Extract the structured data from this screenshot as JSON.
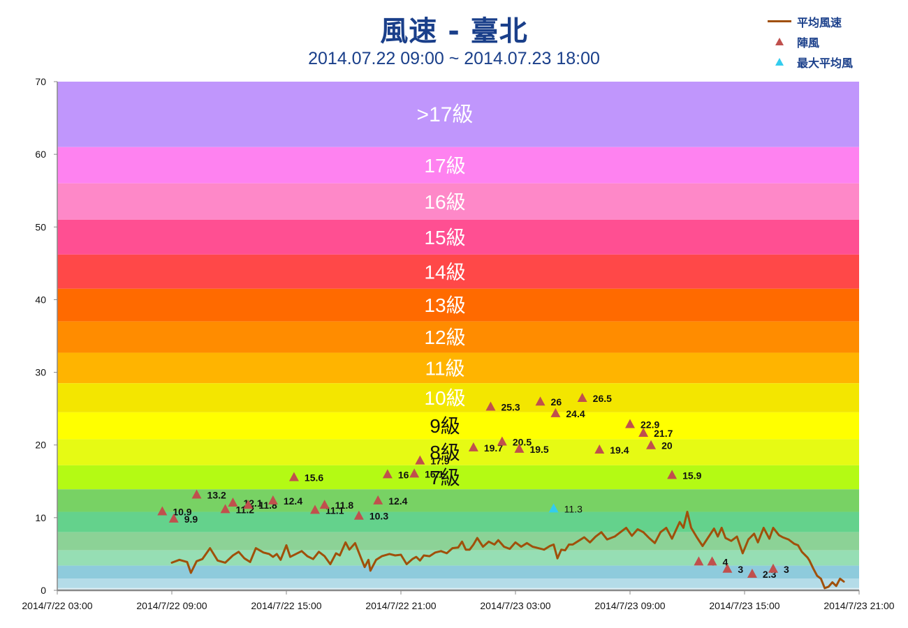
{
  "header": {
    "title": "風速 - 臺北",
    "subtitle": "2014.07.22 09:00 ~ 2014.07.23 18:00"
  },
  "legend": {
    "items": [
      {
        "label": "平均風速",
        "type": "line",
        "color": "#a0500a"
      },
      {
        "label": "陣風",
        "type": "triangle",
        "color": "#c0504d"
      },
      {
        "label": "最大平均風",
        "type": "triangle",
        "color": "#33ccee"
      }
    ]
  },
  "chart_data": {
    "type": "line",
    "title": "風速 - 臺北",
    "subtitle": "2014.07.22 09:00 ~ 2014.07.23 18:00",
    "xlabel": "",
    "ylabel": "",
    "ylim": [
      0,
      70
    ],
    "yticks": [
      0,
      10,
      20,
      30,
      40,
      50,
      60,
      70
    ],
    "xticks": [
      "2014/7/22 03:00",
      "2014/7/22 09:00",
      "2014/7/22 15:00",
      "2014/7/22 21:00",
      "2014/7/23 03:00",
      "2014/7/23 09:00",
      "2014/7/23 15:00",
      "2014/7/23 21:00"
    ],
    "x_range_hours": [
      0,
      42
    ],
    "x_origin": "2014/7/22 03:00",
    "grid": false,
    "legend_position": "top-right",
    "bands": [
      {
        "from": 61.0,
        "to": 70.0,
        "color": "#c096fc",
        "label": ">17級",
        "label_color": "#ffffff"
      },
      {
        "from": 56.0,
        "to": 61.0,
        "color": "#fe82f0",
        "label": "17級",
        "label_color": "#ffffff"
      },
      {
        "from": 51.0,
        "to": 56.0,
        "color": "#fe88c8",
        "label": "16級",
        "label_color": "#ffffff"
      },
      {
        "from": 46.2,
        "to": 51.0,
        "color": "#ff4f92",
        "label": "15級",
        "label_color": "#ffffff"
      },
      {
        "from": 41.5,
        "to": 46.2,
        "color": "#ff4848",
        "label": "14級",
        "label_color": "#ffffff"
      },
      {
        "from": 37.0,
        "to": 41.5,
        "color": "#ff6a00",
        "label": "13級",
        "label_color": "#ffffff"
      },
      {
        "from": 32.7,
        "to": 37.0,
        "color": "#ff8c00",
        "label": "12級",
        "label_color": "#ffffff"
      },
      {
        "from": 28.5,
        "to": 32.7,
        "color": "#ffb400",
        "label": "11級",
        "label_color": "#ffffff"
      },
      {
        "from": 24.5,
        "to": 28.5,
        "color": "#f3e600",
        "label": "10級",
        "label_color": "#ffffff"
      },
      {
        "from": 20.8,
        "to": 24.5,
        "color": "#ffff00",
        "label": "9級",
        "label_color": "#111111"
      },
      {
        "from": 17.2,
        "to": 20.8,
        "color": "#e6fa14",
        "label": "8級",
        "label_color": "#111111"
      },
      {
        "from": 13.9,
        "to": 17.2,
        "color": "#b4fa14",
        "label": "7級",
        "label_color": "#111111"
      },
      {
        "from": 10.8,
        "to": 13.9,
        "color": "#78d264",
        "label": "",
        "label_color": "#111111"
      },
      {
        "from": 8.0,
        "to": 10.8,
        "color": "#64d28c",
        "label": "",
        "label_color": "#111111"
      },
      {
        "from": 5.5,
        "to": 8.0,
        "color": "#8cd296",
        "label": "",
        "label_color": "#111111"
      },
      {
        "from": 3.4,
        "to": 5.5,
        "color": "#96deb4",
        "label": "",
        "label_color": "#111111"
      },
      {
        "from": 1.6,
        "to": 3.4,
        "color": "#8ecbdc",
        "label": "",
        "label_color": "#111111"
      },
      {
        "from": 0.3,
        "to": 1.6,
        "color": "#b4dce8",
        "label": "",
        "label_color": "#111111"
      },
      {
        "from": 0.0,
        "to": 0.3,
        "color": "#dff0f6",
        "label": "",
        "label_color": "#111111"
      }
    ],
    "series": [
      {
        "name": "平均風速",
        "type": "line",
        "color": "#a0500a",
        "points": [
          [
            6.0,
            3.8
          ],
          [
            6.4,
            4.2
          ],
          [
            6.8,
            3.9
          ],
          [
            7.0,
            2.4
          ],
          [
            7.3,
            4.0
          ],
          [
            7.6,
            4.3
          ],
          [
            8.0,
            5.8
          ],
          [
            8.4,
            4.1
          ],
          [
            8.8,
            3.8
          ],
          [
            9.2,
            4.8
          ],
          [
            9.5,
            5.3
          ],
          [
            9.8,
            4.4
          ],
          [
            10.1,
            3.9
          ],
          [
            10.4,
            5.8
          ],
          [
            10.8,
            5.2
          ],
          [
            11.1,
            5.0
          ],
          [
            11.3,
            4.6
          ],
          [
            11.5,
            5.0
          ],
          [
            11.7,
            4.2
          ],
          [
            12.0,
            6.2
          ],
          [
            12.2,
            4.6
          ],
          [
            12.5,
            5.0
          ],
          [
            12.8,
            5.4
          ],
          [
            13.1,
            4.7
          ],
          [
            13.4,
            4.3
          ],
          [
            13.7,
            5.3
          ],
          [
            14.0,
            4.7
          ],
          [
            14.3,
            3.6
          ],
          [
            14.6,
            5.1
          ],
          [
            14.8,
            4.8
          ],
          [
            15.1,
            6.6
          ],
          [
            15.3,
            5.6
          ],
          [
            15.6,
            6.5
          ],
          [
            15.9,
            4.5
          ],
          [
            16.1,
            3.2
          ],
          [
            16.3,
            4.2
          ],
          [
            16.4,
            2.7
          ],
          [
            16.7,
            4.2
          ],
          [
            17.0,
            4.7
          ],
          [
            17.4,
            5.0
          ],
          [
            17.7,
            4.8
          ],
          [
            18.0,
            4.9
          ],
          [
            18.3,
            3.6
          ],
          [
            18.6,
            4.3
          ],
          [
            18.8,
            4.6
          ],
          [
            19.0,
            4.1
          ],
          [
            19.2,
            4.8
          ],
          [
            19.5,
            4.7
          ],
          [
            19.8,
            5.2
          ],
          [
            20.1,
            5.4
          ],
          [
            20.4,
            5.1
          ],
          [
            20.7,
            5.8
          ],
          [
            21.0,
            5.9
          ],
          [
            21.2,
            6.7
          ],
          [
            21.4,
            5.6
          ],
          [
            21.6,
            5.6
          ],
          [
            21.8,
            6.3
          ],
          [
            22.0,
            7.2
          ],
          [
            22.3,
            6.0
          ],
          [
            22.6,
            6.7
          ],
          [
            22.9,
            6.3
          ],
          [
            23.1,
            6.9
          ],
          [
            23.4,
            6.0
          ],
          [
            23.7,
            5.7
          ],
          [
            24.0,
            6.6
          ],
          [
            24.3,
            6.0
          ],
          [
            24.6,
            6.5
          ],
          [
            24.9,
            6.0
          ],
          [
            25.2,
            5.8
          ],
          [
            25.5,
            5.6
          ],
          [
            25.8,
            6.1
          ],
          [
            26.0,
            6.3
          ],
          [
            26.2,
            4.4
          ],
          [
            26.4,
            5.6
          ],
          [
            26.6,
            5.5
          ],
          [
            26.8,
            6.3
          ],
          [
            27.0,
            6.3
          ],
          [
            27.3,
            6.8
          ],
          [
            27.6,
            7.3
          ],
          [
            27.9,
            6.6
          ],
          [
            28.2,
            7.4
          ],
          [
            28.5,
            8.0
          ],
          [
            28.8,
            7.0
          ],
          [
            29.2,
            7.4
          ],
          [
            29.5,
            8.0
          ],
          [
            29.8,
            8.6
          ],
          [
            30.1,
            7.5
          ],
          [
            30.4,
            8.4
          ],
          [
            30.7,
            8.0
          ],
          [
            31.0,
            7.2
          ],
          [
            31.3,
            6.5
          ],
          [
            31.6,
            8.0
          ],
          [
            31.9,
            8.6
          ],
          [
            32.2,
            7.1
          ],
          [
            32.6,
            9.4
          ],
          [
            32.8,
            8.6
          ],
          [
            33.0,
            10.8
          ],
          [
            33.2,
            8.6
          ],
          [
            33.5,
            7.3
          ],
          [
            33.8,
            6.1
          ],
          [
            34.1,
            7.3
          ],
          [
            34.4,
            8.5
          ],
          [
            34.6,
            7.4
          ],
          [
            34.8,
            8.6
          ],
          [
            35.0,
            7.2
          ],
          [
            35.3,
            6.8
          ],
          [
            35.6,
            7.4
          ],
          [
            35.9,
            5.1
          ],
          [
            36.2,
            7.0
          ],
          [
            36.5,
            7.8
          ],
          [
            36.7,
            6.6
          ],
          [
            37.0,
            8.6
          ],
          [
            37.3,
            7.1
          ],
          [
            37.5,
            8.6
          ],
          [
            37.8,
            7.6
          ],
          [
            38.0,
            7.3
          ],
          [
            38.3,
            7.0
          ],
          [
            38.6,
            6.4
          ],
          [
            38.8,
            6.2
          ],
          [
            39.0,
            5.3
          ],
          [
            39.3,
            4.5
          ],
          [
            39.4,
            4.1
          ],
          [
            39.6,
            3.0
          ],
          [
            39.8,
            2.0
          ],
          [
            40.0,
            1.6
          ],
          [
            40.2,
            0.3
          ],
          [
            40.4,
            0.5
          ],
          [
            40.6,
            1.1
          ],
          [
            40.8,
            0.6
          ],
          [
            41.0,
            1.6
          ],
          [
            41.2,
            1.2
          ]
        ]
      },
      {
        "name": "陣風",
        "type": "scatter",
        "marker": "triangle",
        "color": "#c0504d",
        "points": [
          {
            "x": 5.5,
            "y": 10.9,
            "label": "10.9"
          },
          {
            "x": 6.1,
            "y": 9.9,
            "label": "9.9"
          },
          {
            "x": 7.3,
            "y": 13.2,
            "label": "13.2"
          },
          {
            "x": 8.8,
            "y": 11.2,
            "label": "11.2"
          },
          {
            "x": 9.2,
            "y": 12.1,
            "label": "12.1"
          },
          {
            "x": 10.0,
            "y": 11.8,
            "label": "11.8"
          },
          {
            "x": 11.3,
            "y": 12.4,
            "label": "12.4"
          },
          {
            "x": 12.4,
            "y": 15.6,
            "label": "15.6"
          },
          {
            "x": 13.5,
            "y": 11.1,
            "label": "11.1"
          },
          {
            "x": 14.0,
            "y": 11.8,
            "label": "11.8"
          },
          {
            "x": 15.8,
            "y": 10.3,
            "label": "10.3"
          },
          {
            "x": 16.8,
            "y": 12.4,
            "label": "12.4"
          },
          {
            "x": 17.3,
            "y": 16.0,
            "label": "16"
          },
          {
            "x": 18.7,
            "y": 16.1,
            "label": "16.1"
          },
          {
            "x": 19.0,
            "y": 17.9,
            "label": "17.9"
          },
          {
            "x": 21.8,
            "y": 19.7,
            "label": "19.7"
          },
          {
            "x": 22.7,
            "y": 25.3,
            "label": "25.3"
          },
          {
            "x": 23.3,
            "y": 20.5,
            "label": "20.5"
          },
          {
            "x": 24.2,
            "y": 19.5,
            "label": "19.5"
          },
          {
            "x": 25.3,
            "y": 26.0,
            "label": "26"
          },
          {
            "x": 26.1,
            "y": 24.4,
            "label": "24.4"
          },
          {
            "x": 27.5,
            "y": 26.5,
            "label": "26.5"
          },
          {
            "x": 28.4,
            "y": 19.4,
            "label": "19.4"
          },
          {
            "x": 30.0,
            "y": 22.9,
            "label": "22.9"
          },
          {
            "x": 30.7,
            "y": 21.7,
            "label": "21.7"
          },
          {
            "x": 31.1,
            "y": 20.0,
            "label": "20"
          },
          {
            "x": 32.2,
            "y": 15.9,
            "label": "15.9"
          },
          {
            "x": 33.6,
            "y": 4.0,
            "label": "4"
          },
          {
            "x": 34.3,
            "y": 4.0,
            "label": "4"
          },
          {
            "x": 35.1,
            "y": 3.0,
            "label": "3"
          },
          {
            "x": 36.4,
            "y": 2.3,
            "label": "2.3"
          },
          {
            "x": 37.5,
            "y": 3.0,
            "label": "3"
          }
        ]
      },
      {
        "name": "最大平均風",
        "type": "scatter",
        "marker": "triangle",
        "color": "#33ccee",
        "points": [
          {
            "x": 26.0,
            "y": 11.3,
            "label": "11.3"
          }
        ]
      }
    ]
  }
}
